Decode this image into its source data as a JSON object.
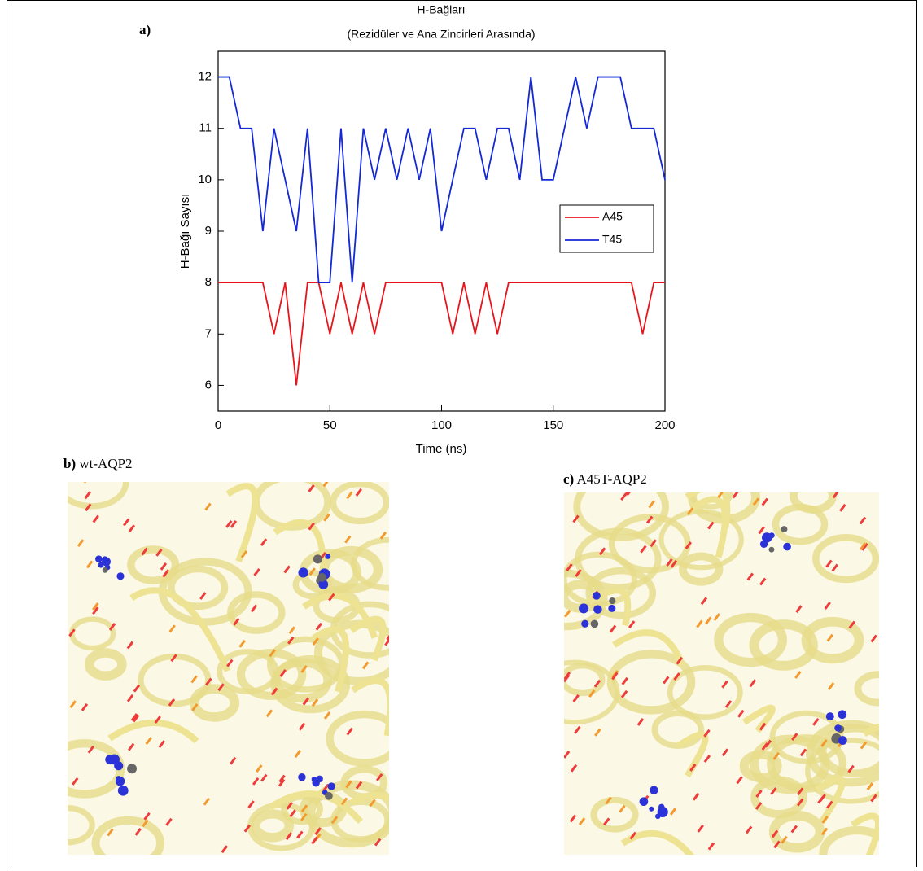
{
  "chart_data": {
    "type": "line",
    "panel_label": "a)",
    "title": "H-Bağları",
    "subtitle": "(Rezidüler ve Ana Zincirleri Arasında)",
    "x_label": "Time (ns)",
    "y_label": "H-Bağı Sayısı",
    "x": [
      0,
      5,
      10,
      15,
      20,
      25,
      30,
      35,
      40,
      45,
      50,
      55,
      60,
      65,
      70,
      75,
      80,
      85,
      90,
      95,
      100,
      105,
      110,
      115,
      120,
      125,
      130,
      135,
      140,
      145,
      150,
      155,
      160,
      165,
      170,
      175,
      180,
      185,
      190,
      195,
      200
    ],
    "series": [
      {
        "name": "A45",
        "color": "#e8141b",
        "values": [
          8,
          8,
          8,
          8,
          8,
          7,
          8,
          6,
          8,
          8,
          7,
          8,
          7,
          8,
          7,
          8,
          8,
          8,
          8,
          8,
          8,
          7,
          8,
          7,
          8,
          7,
          8,
          8,
          8,
          8,
          8,
          8,
          8,
          8,
          8,
          8,
          8,
          8,
          7,
          8,
          8
        ]
      },
      {
        "name": "T45",
        "color": "#1428d6",
        "values": [
          12,
          12,
          11,
          11,
          9,
          11,
          10,
          9,
          11,
          8,
          8,
          11,
          8,
          11,
          10,
          11,
          10,
          11,
          10,
          11,
          9,
          10,
          11,
          11,
          10,
          11,
          11,
          10,
          12,
          10,
          10,
          11,
          12,
          11,
          12,
          12,
          12,
          11,
          11,
          11,
          10
        ]
      }
    ],
    "xlim": [
      0,
      200
    ],
    "xticks": [
      0,
      50,
      100,
      150,
      200
    ],
    "ylim": [
      5.5,
      12.5
    ],
    "yticks": [
      6,
      7,
      8,
      9,
      10,
      11,
      12
    ],
    "grid": false,
    "legend": "right"
  },
  "panels": [
    {
      "label": "b)",
      "caption": "wt-AQP2"
    },
    {
      "label": "c)",
      "caption": "A45T-AQP2"
    }
  ]
}
